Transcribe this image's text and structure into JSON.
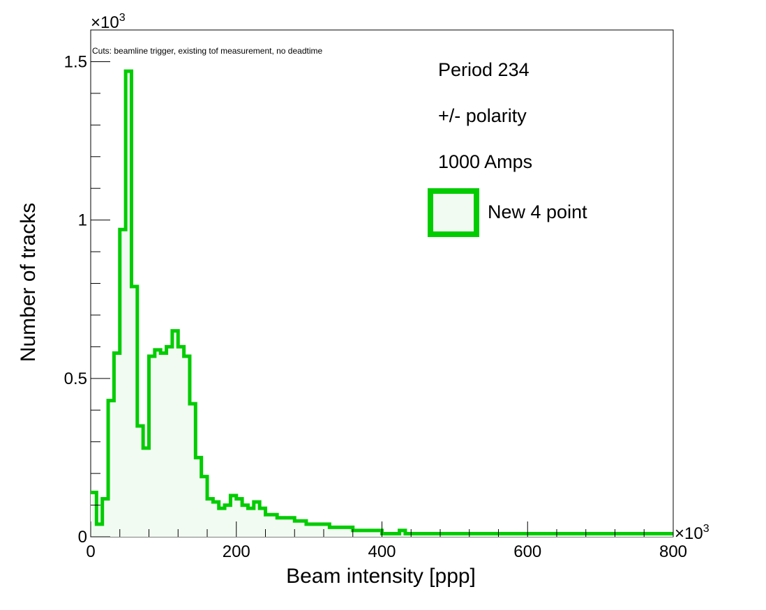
{
  "chart_data": {
    "type": "histogram",
    "title": "",
    "cuts_note": "Cuts: beamline trigger, existing tof measurement, no deadtime",
    "xlabel": "Beam intensity [ppp]",
    "ylabel": "Number of tracks",
    "x_multiplier_label": "×10",
    "x_multiplier_exp": "3",
    "y_multiplier_label": "×10",
    "y_multiplier_exp": "3",
    "xlim": [
      0,
      800
    ],
    "ylim": [
      0,
      1.6
    ],
    "x_ticks": [
      0,
      200,
      400,
      600,
      800
    ],
    "x_tick_labels": [
      "0",
      "200",
      "400",
      "600",
      "800"
    ],
    "y_ticks": [
      0,
      0.5,
      1,
      1.5
    ],
    "y_tick_labels": [
      "0",
      "0.5",
      "1",
      "1.5"
    ],
    "bin_width": 8,
    "grid": false,
    "series": [
      {
        "name": "New 4 point",
        "line_color": "#00cc00",
        "fill_color": "#f2fbf2",
        "values": [
          0.14,
          0.04,
          0.12,
          0.43,
          0.58,
          0.97,
          1.47,
          0.79,
          0.35,
          0.28,
          0.57,
          0.59,
          0.58,
          0.6,
          0.65,
          0.6,
          0.57,
          0.42,
          0.25,
          0.19,
          0.12,
          0.11,
          0.09,
          0.1,
          0.13,
          0.12,
          0.1,
          0.09,
          0.11,
          0.09,
          0.07,
          0.07,
          0.06,
          0.06,
          0.06,
          0.05,
          0.05,
          0.04,
          0.04,
          0.04,
          0.04,
          0.03,
          0.03,
          0.03,
          0.03,
          0.02,
          0.02,
          0.02,
          0.02,
          0.02,
          0.01,
          0.01,
          0.01,
          0.02,
          0.01,
          0.01,
          0.01,
          0.01,
          0.01,
          0.01,
          0.01,
          0.01,
          0.01,
          0.01,
          0.01,
          0.01,
          0.01,
          0.01,
          0.01,
          0.01,
          0.01,
          0.01,
          0.01,
          0.01,
          0.01,
          0.01,
          0.01,
          0.01,
          0.01,
          0.01,
          0.01,
          0.01,
          0.01,
          0.01,
          0.01,
          0.01,
          0.01,
          0.01,
          0.01,
          0.01,
          0.01,
          0.01,
          0.01,
          0.01,
          0.01,
          0.01,
          0.01,
          0.01,
          0.01,
          0.01
        ]
      }
    ],
    "legend": {
      "placement": "top-right",
      "lines": [
        "Period 234",
        "+/- polarity",
        "1000 Amps"
      ],
      "entry_label": "New 4 point"
    }
  }
}
